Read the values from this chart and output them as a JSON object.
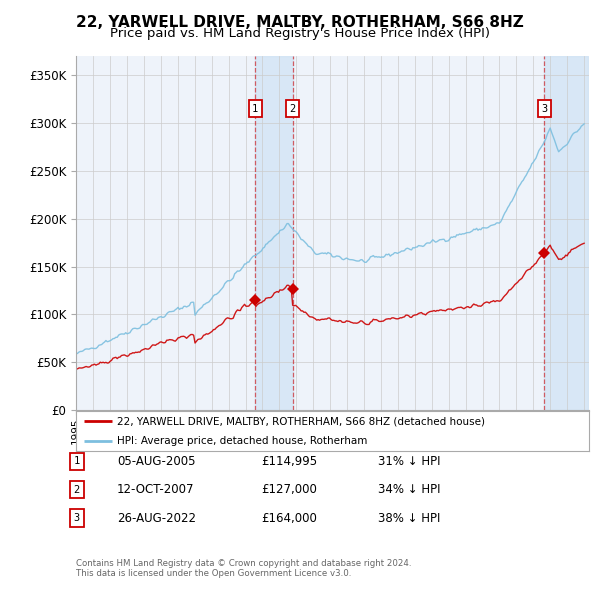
{
  "title": "22, YARWELL DRIVE, MALTBY, ROTHERHAM, S66 8HZ",
  "subtitle": "Price paid vs. HM Land Registry's House Price Index (HPI)",
  "hpi_label": "HPI: Average price, detached house, Rotherham",
  "property_label": "22, YARWELL DRIVE, MALTBY, ROTHERHAM, S66 8HZ (detached house)",
  "footer1": "Contains HM Land Registry data © Crown copyright and database right 2024.",
  "footer2": "This data is licensed under the Open Government Licence v3.0.",
  "ylabel_ticks": [
    "£0",
    "£50K",
    "£100K",
    "£150K",
    "£200K",
    "£250K",
    "£300K",
    "£350K"
  ],
  "ytick_values": [
    0,
    50000,
    100000,
    150000,
    200000,
    250000,
    300000,
    350000
  ],
  "ylim": [
    0,
    370000
  ],
  "transactions": [
    {
      "num": 1,
      "date": "05-AUG-2005",
      "price": 114995,
      "year": 2005.58,
      "pct": "31% ↓ HPI"
    },
    {
      "num": 2,
      "date": "12-OCT-2007",
      "price": 127000,
      "year": 2007.78,
      "pct": "34% ↓ HPI"
    },
    {
      "num": 3,
      "date": "26-AUG-2022",
      "price": 164000,
      "year": 2022.65,
      "pct": "38% ↓ HPI"
    }
  ],
  "hpi_color": "#7dbfdf",
  "price_color": "#cc0000",
  "grid_color": "#cccccc",
  "background_color": "#ffffff",
  "plot_bg": "#eef3fa",
  "title_fontsize": 11,
  "subtitle_fontsize": 9.5
}
